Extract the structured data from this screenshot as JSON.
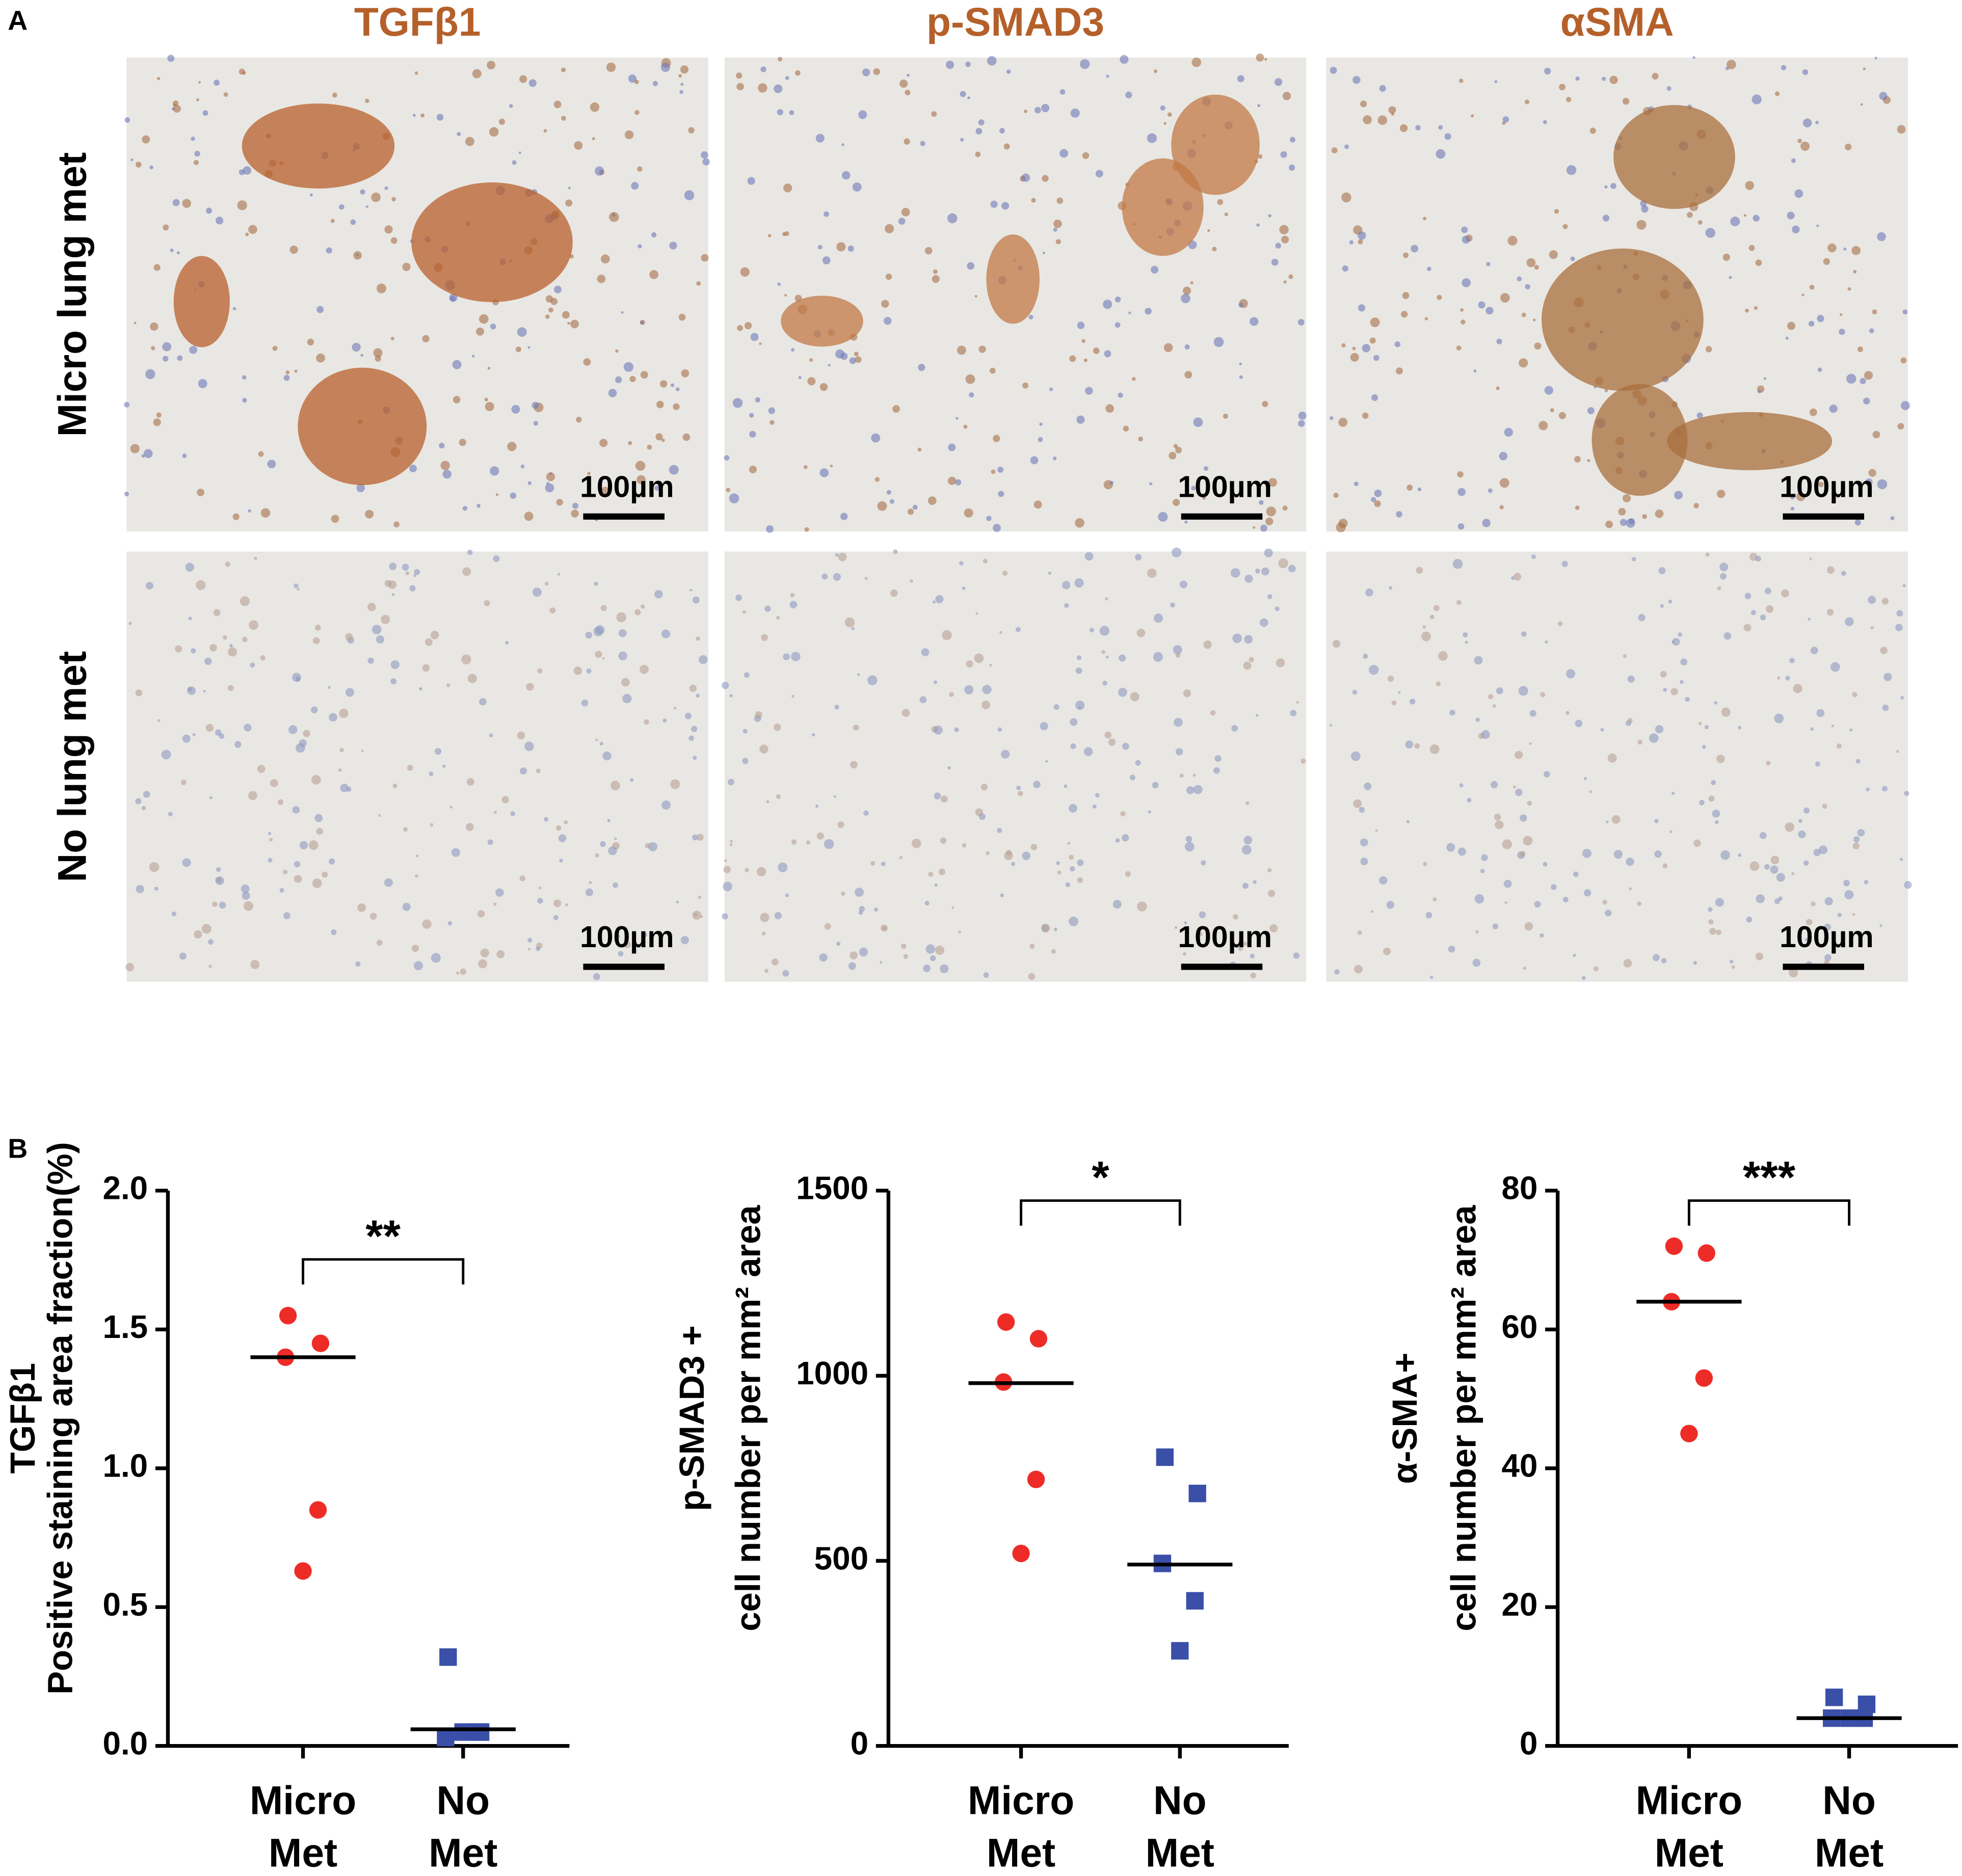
{
  "figure": {
    "panel_labels": [
      "A",
      "B"
    ],
    "column_titles": [
      "TGFβ1",
      "p-SMAD3",
      "αSMA"
    ],
    "row_labels": [
      "Micro lung met",
      "No lung met"
    ],
    "scale_bar_label": "100µm"
  },
  "chart_data": [
    {
      "type": "dotplot",
      "ylabel": [
        "TGFβ1",
        "Positive staining area fraction(%)"
      ],
      "categories": [
        "Micro Met",
        "No Met"
      ],
      "annotation": "**",
      "ylim": [
        0,
        2.0
      ],
      "yticks": [
        {
          "value": 0,
          "label": "0.0"
        },
        0.5,
        {
          "value": 1,
          "label": "1.0"
        },
        1.5,
        {
          "value": 2,
          "label": "2.0"
        }
      ],
      "groups": [
        {
          "color": "#ee2c27",
          "marker": "circle",
          "values": [
            1.55,
            1.45,
            1.4,
            0.85,
            0.63
          ],
          "median": 1.4
        },
        {
          "color": "#3a4fa8",
          "marker": "square",
          "values": [
            0.32,
            0.05,
            0.03,
            0.05,
            0.05
          ],
          "median": 0.06
        }
      ]
    },
    {
      "type": "dotplot",
      "ylabel": [
        "p-SMAD3 +",
        "cell number per mm² area"
      ],
      "categories": [
        "Micro Met",
        "No Met"
      ],
      "annotation": "*",
      "ylim": [
        0,
        1500
      ],
      "yticks": [
        0,
        500,
        1000,
        1500
      ],
      "groups": [
        {
          "color": "#ee2c27",
          "marker": "circle",
          "values": [
            1145,
            1100,
            983,
            720,
            520
          ],
          "median": 980
        },
        {
          "color": "#3a4fa8",
          "marker": "square",
          "values": [
            780,
            682,
            493,
            392,
            257
          ],
          "median": 490
        }
      ]
    },
    {
      "type": "dotplot",
      "ylabel": [
        "α-SMA+",
        "cell number per mm² area"
      ],
      "categories": [
        "Micro Met",
        "No Met"
      ],
      "annotation": "***",
      "ylim": [
        0,
        80
      ],
      "yticks": [
        0,
        20,
        40,
        60,
        80
      ],
      "groups": [
        {
          "color": "#ee2c27",
          "marker": "circle",
          "values": [
            72,
            71,
            64,
            53,
            45
          ],
          "median": 64
        },
        {
          "color": "#3a4fa8",
          "marker": "square",
          "values": [
            7,
            6,
            4,
            4,
            4
          ],
          "median": 4
        }
      ]
    }
  ]
}
